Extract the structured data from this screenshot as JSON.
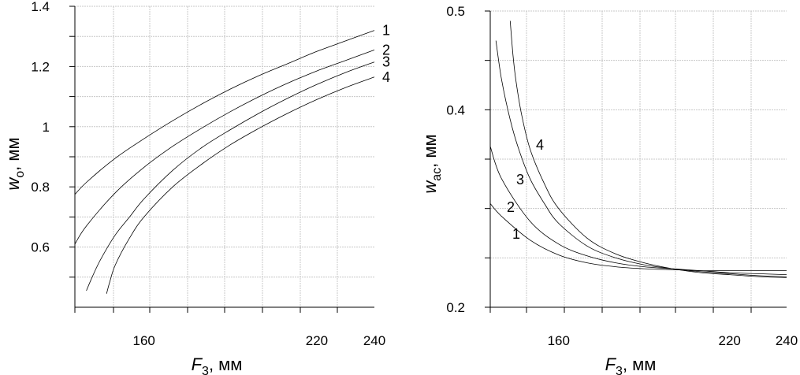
{
  "chart_data": [
    {
      "type": "line",
      "xlabel_main": "F",
      "xlabel_sub": "3",
      "xlabel_unit": ", мм",
      "ylabel_main": "w",
      "ylabel_sub": "o",
      "ylabel_unit": ", мм",
      "xlim": [
        136,
        240
      ],
      "ylim": [
        0.4,
        1.4
      ],
      "x_ticks": [
        160,
        220,
        240
      ],
      "x_tick_labels": [
        "160",
        "220",
        "240"
      ],
      "y_ticks": [
        0.6,
        0.8,
        1,
        1.2,
        1.4
      ],
      "y_tick_labels": [
        "0.6",
        "0.8",
        "1",
        "1.2",
        "1.4"
      ],
      "grid": true,
      "series": [
        {
          "name": "1",
          "x": [
            136,
            140,
            150,
            160,
            170,
            180,
            190,
            200,
            210,
            220,
            230,
            240
          ],
          "y": [
            0.775,
            0.815,
            0.895,
            0.96,
            1.02,
            1.075,
            1.125,
            1.17,
            1.21,
            1.25,
            1.285,
            1.32
          ]
        },
        {
          "name": "2",
          "x": [
            136,
            140,
            150,
            160,
            170,
            180,
            190,
            200,
            210,
            220,
            230,
            240
          ],
          "y": [
            0.61,
            0.67,
            0.78,
            0.865,
            0.935,
            0.995,
            1.05,
            1.1,
            1.145,
            1.185,
            1.22,
            1.255
          ]
        },
        {
          "name": "3",
          "x": [
            140,
            142,
            145,
            150,
            155,
            160,
            170,
            180,
            190,
            200,
            210,
            220,
            230,
            240
          ],
          "y": [
            0.455,
            0.5,
            0.56,
            0.64,
            0.7,
            0.76,
            0.855,
            0.93,
            0.99,
            1.045,
            1.095,
            1.14,
            1.18,
            1.215
          ]
        },
        {
          "name": "4",
          "x": [
            147,
            148,
            150,
            155,
            160,
            170,
            180,
            190,
            200,
            210,
            220,
            230,
            240
          ],
          "y": [
            0.445,
            0.48,
            0.54,
            0.63,
            0.7,
            0.8,
            0.875,
            0.94,
            0.995,
            1.045,
            1.09,
            1.13,
            1.165
          ]
        }
      ]
    },
    {
      "type": "line",
      "xlabel_main": "F",
      "xlabel_sub": "3",
      "xlabel_unit": ", мм",
      "ylabel_main": "w",
      "ylabel_sub": "ac",
      "ylabel_unit": ", мм",
      "xlim": [
        136,
        240
      ],
      "ylim": [
        0.2,
        0.5
      ],
      "x_ticks": [
        160,
        220,
        240
      ],
      "x_tick_labels": [
        "160",
        "220",
        "240"
      ],
      "y_ticks": [
        0.2,
        0.4,
        0.5
      ],
      "y_tick_labels": [
        "0.2",
        "0.4",
        "0.5"
      ],
      "grid": true,
      "series": [
        {
          "name": "1",
          "x": [
            136,
            140,
            150,
            160,
            170,
            180,
            190,
            200,
            210,
            220,
            230,
            240
          ],
          "y": [
            0.305,
            0.292,
            0.268,
            0.253,
            0.245,
            0.241,
            0.239,
            0.238,
            0.237,
            0.237,
            0.237,
            0.237
          ]
        },
        {
          "name": "2",
          "x": [
            136,
            140,
            150,
            160,
            170,
            180,
            190,
            200,
            210,
            220,
            230,
            240
          ],
          "y": [
            0.363,
            0.33,
            0.287,
            0.264,
            0.252,
            0.245,
            0.241,
            0.239,
            0.237,
            0.235,
            0.234,
            0.233
          ]
        },
        {
          "name": "3",
          "x": [
            138,
            140,
            143,
            146,
            150,
            155,
            160,
            170,
            180,
            190,
            200,
            210,
            220,
            230,
            240
          ],
          "y": [
            0.47,
            0.43,
            0.39,
            0.36,
            0.33,
            0.305,
            0.285,
            0.262,
            0.25,
            0.243,
            0.239,
            0.236,
            0.234,
            0.232,
            0.231
          ]
        },
        {
          "name": "4",
          "x": [
            143,
            144,
            145,
            147,
            150,
            155,
            160,
            170,
            180,
            190,
            200,
            210,
            220,
            230,
            240
          ],
          "y": [
            0.49,
            0.455,
            0.43,
            0.395,
            0.36,
            0.325,
            0.3,
            0.27,
            0.254,
            0.245,
            0.239,
            0.235,
            0.233,
            0.231,
            0.23
          ]
        }
      ]
    }
  ]
}
